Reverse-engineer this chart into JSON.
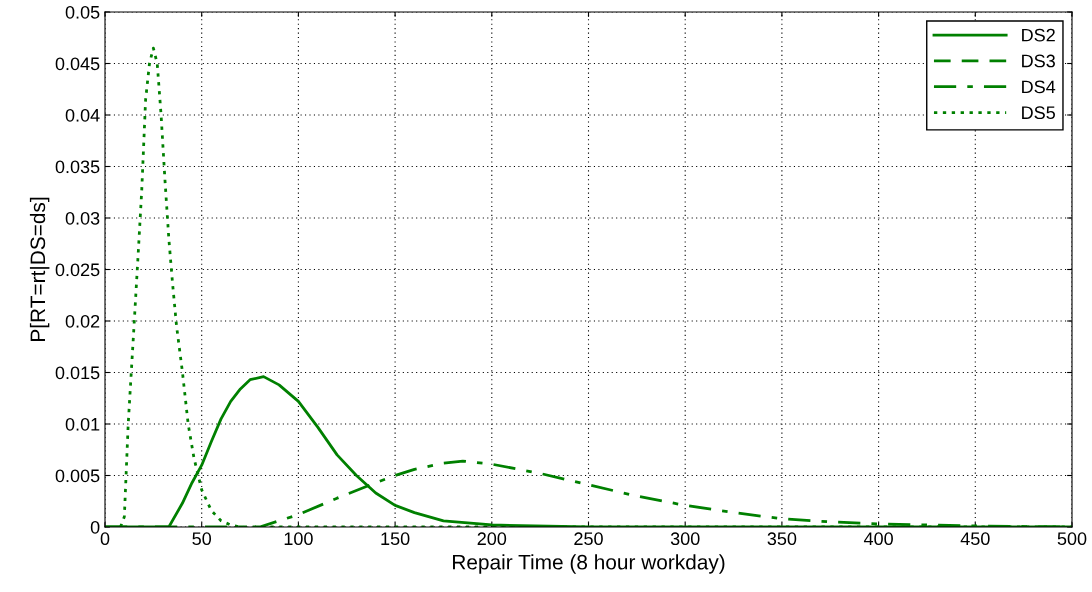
{
  "chart_data": {
    "type": "line",
    "xlabel": "Repair Time (8 hour workday)",
    "ylabel": "P[RT=rt|DS=ds]",
    "xlim": [
      0,
      500
    ],
    "ylim": [
      0,
      0.05
    ],
    "xticks": [
      0,
      50,
      100,
      150,
      200,
      250,
      300,
      350,
      400,
      450,
      500
    ],
    "yticks": [
      0,
      0.005,
      0.01,
      0.015,
      0.02,
      0.025,
      0.03,
      0.035,
      0.04,
      0.045,
      0.05
    ],
    "grid": true,
    "legend": "top right",
    "marker": "none",
    "series": [
      {
        "name": "DS2",
        "color": "#008000",
        "line_style": "solid",
        "x": [
          0,
          33,
          40,
          45,
          50,
          55,
          60,
          65,
          70,
          75,
          82,
          90,
          100,
          110,
          120,
          130,
          140,
          150,
          160,
          175,
          200,
          250,
          500
        ],
        "values": [
          0,
          0,
          0.0023,
          0.0043,
          0.006,
          0.0083,
          0.0105,
          0.0122,
          0.0134,
          0.0143,
          0.0146,
          0.0138,
          0.0122,
          0.0097,
          0.007,
          0.005,
          0.0033,
          0.0021,
          0.0014,
          0.0006,
          0.0002,
          0,
          0
        ]
      },
      {
        "name": "DS3",
        "color": "#008000",
        "line_style": "dashed"
      },
      {
        "name": "DS4",
        "color": "#008000",
        "line_style": "dashdot",
        "x": [
          0,
          80,
          100,
          120,
          140,
          150,
          160,
          175,
          185,
          200,
          225,
          250,
          275,
          300,
          325,
          350,
          375,
          400,
          450,
          500
        ],
        "values": [
          0,
          0,
          0.0012,
          0.0028,
          0.0043,
          0.005,
          0.0056,
          0.0062,
          0.0064,
          0.0061,
          0.0052,
          0.0041,
          0.003,
          0.0021,
          0.0014,
          0.0008,
          0.0005,
          0.0003,
          0.0001,
          0
        ]
      },
      {
        "name": "DS5",
        "color": "#008000",
        "line_style": "dotted",
        "x": [
          8,
          10,
          12,
          15,
          17,
          19,
          21,
          23,
          25,
          27,
          29,
          31,
          33,
          35,
          37,
          40,
          43,
          46,
          50,
          55,
          60,
          65,
          70,
          500
        ],
        "values": [
          0,
          0.001,
          0.01,
          0.0195,
          0.026,
          0.0327,
          0.0415,
          0.045,
          0.0465,
          0.045,
          0.04,
          0.0337,
          0.028,
          0.0235,
          0.0195,
          0.0151,
          0.01,
          0.0067,
          0.0036,
          0.0016,
          0.0006,
          0.0002,
          0,
          0
        ]
      }
    ]
  }
}
